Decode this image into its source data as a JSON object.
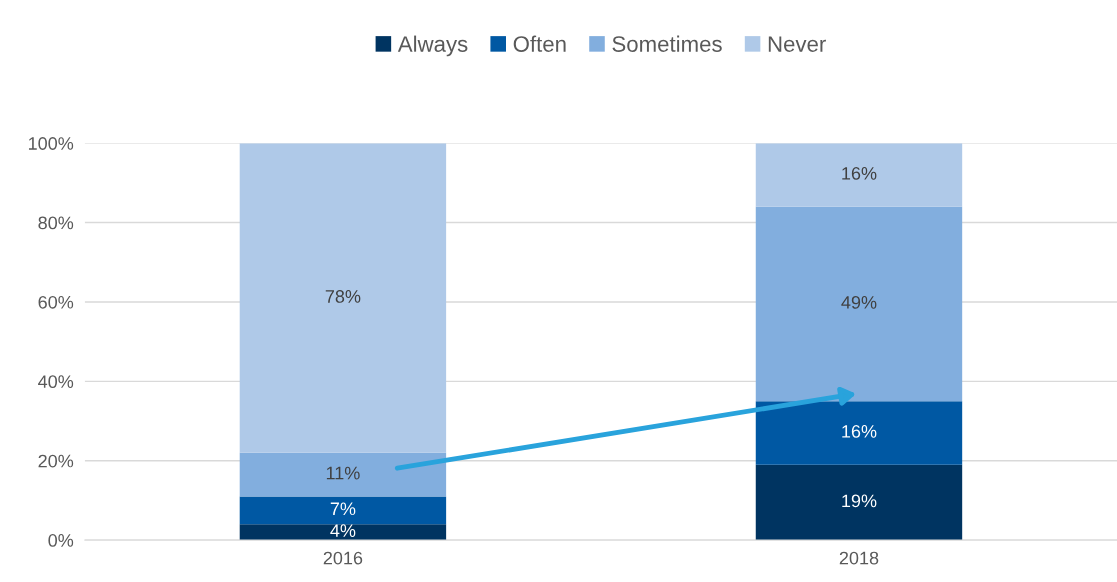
{
  "chart_data": {
    "type": "bar",
    "stacked": true,
    "categories": [
      "2016",
      "2018"
    ],
    "series": [
      {
        "name": "Always",
        "color": "#003461",
        "values": [
          4,
          19
        ],
        "value_labels": [
          "4%",
          "19%"
        ]
      },
      {
        "name": "Often",
        "color": "#0058a3",
        "values": [
          7,
          16
        ],
        "value_labels": [
          "7%",
          "16%"
        ]
      },
      {
        "name": "Sometimes",
        "color": "#82aede",
        "values": [
          11,
          49
        ],
        "value_labels": [
          "11%",
          "49%"
        ]
      },
      {
        "name": "Never",
        "color": "#afc9e8",
        "values": [
          78,
          16
        ],
        "value_labels": [
          "78%",
          "16%"
        ]
      }
    ],
    "ylim": [
      0,
      100
    ],
    "yticks": [
      {
        "value": 0,
        "label": "0%"
      },
      {
        "value": 20,
        "label": "20%"
      },
      {
        "value": 40,
        "label": "40%"
      },
      {
        "value": 60,
        "label": "60%"
      },
      {
        "value": 80,
        "label": "80%"
      },
      {
        "value": 100,
        "label": "100%"
      }
    ],
    "grid": "y",
    "legend": "top"
  }
}
